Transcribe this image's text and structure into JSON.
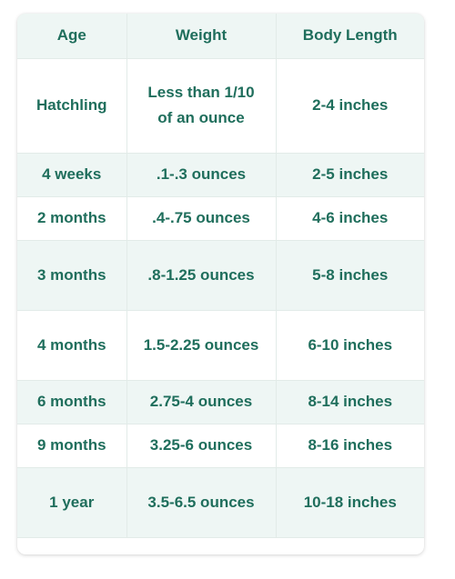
{
  "table": {
    "headers": [
      "Age",
      "Weight",
      "Body Length"
    ],
    "rows": [
      {
        "age": "Hatchling",
        "weight": "Less than 1/10 of an ounce",
        "length": "2-4 inches"
      },
      {
        "age": "4 weeks",
        "weight": ".1-.3 ounces",
        "length": "2-5 inches"
      },
      {
        "age": "2 months",
        "weight": ".4-.75 ounces",
        "length": "4-6 inches"
      },
      {
        "age": "3 months",
        "weight": ".8-1.25 ounces",
        "length": "5-8 inches"
      },
      {
        "age": "4 months",
        "weight": "1.5-2.25 ounces",
        "length": "6-10 inches"
      },
      {
        "age": "6 months",
        "weight": "2.75-4 ounces",
        "length": "8-14 inches"
      },
      {
        "age": "9 months",
        "weight": "3.25-6 ounces",
        "length": "8-16 inches"
      },
      {
        "age": "1 year",
        "weight": "3.5-6.5 ounces",
        "length": "10-18 inches"
      }
    ]
  },
  "colors": {
    "text": "#1f6e5c",
    "header_bg": "#eef6f4",
    "shaded_row_bg": "#eef6f4",
    "border": "#e2ebe8"
  }
}
